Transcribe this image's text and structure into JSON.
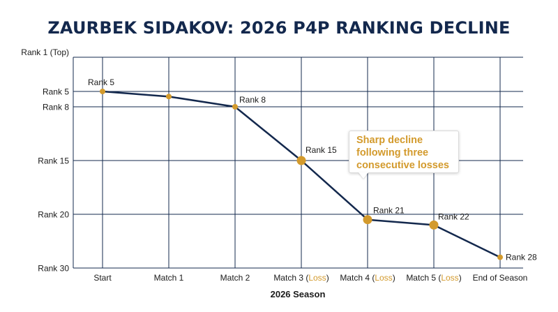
{
  "chart_data": {
    "type": "line",
    "title": "ZAURBEK SIDAKOV: 2026 P4P RANKING DECLINE",
    "xlabel": "2026 Season",
    "ylabel": "",
    "categories": [
      {
        "base": "Start",
        "loss": ""
      },
      {
        "base": "Match 1",
        "loss": ""
      },
      {
        "base": "Match 2",
        "loss": ""
      },
      {
        "base": "Match 3 (",
        "loss": "Loss",
        "close": ")"
      },
      {
        "base": "Match 4 (",
        "loss": "Loss",
        "close": ")"
      },
      {
        "base": "Match 5 (",
        "loss": "Loss",
        "close": ")"
      },
      {
        "base": "End of Season",
        "loss": ""
      }
    ],
    "y_ticks": [
      "Rank 1 (Top)",
      "Rank 5",
      "Rank 8",
      "Rank 15",
      "Rank 20",
      "Rank 30"
    ],
    "y_tick_ranks": [
      1,
      5,
      8,
      15,
      20,
      30
    ],
    "series": [
      {
        "values": [
          5,
          6,
          8,
          15,
          21,
          22,
          28
        ],
        "point_labels": [
          "Rank 5",
          "",
          "Rank 8",
          "Rank 15",
          "Rank 21",
          "Rank 22",
          "Rank 28"
        ],
        "large_marker": [
          false,
          false,
          false,
          true,
          true,
          true,
          false
        ]
      }
    ],
    "annotation": {
      "lines": [
        "Sharp decline",
        "following three",
        "consecutive losses"
      ],
      "points_to": "Match 4 (Loss)"
    },
    "grid": true,
    "colors": {
      "line": "#13284d",
      "marker": "#d39a2c",
      "loss": "#d39a2c",
      "grid": "#13284d",
      "text": "#1a1a1a"
    }
  }
}
